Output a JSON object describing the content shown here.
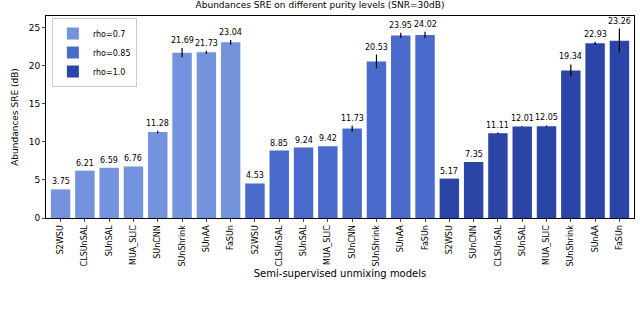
{
  "chart_data": {
    "type": "bar",
    "title": "Abundances SRE on different purity levels (SNR=30dB)",
    "x_label": "Semi-supervised unmixing models",
    "y_label": "Abundances SRE (dB)",
    "categories": [
      "S2WSU",
      "CLSUnSAL",
      "SUnSAL",
      "MUA_SLIC",
      "SUnCNN",
      "SUnShrink",
      "SUnAA",
      "FaSUn",
      "S2WSU",
      "CLSUnSAL",
      "SUnSAL",
      "MUA_SLIC",
      "SUnCNN",
      "SUnShrink",
      "SUnAA",
      "FaSUn",
      "S2WSU",
      "SUnCNN",
      "CLSUnSAL",
      "SUnSAL",
      "MUA_SLIC",
      "SUnShrink",
      "SUnAA",
      "FaSUn"
    ],
    "series": [
      {
        "name": "rho=0.7",
        "color": "#7393dc",
        "values": [
          3.75,
          6.21,
          6.59,
          6.76,
          11.28,
          21.69,
          21.73,
          23.04,
          null,
          null,
          null,
          null,
          null,
          null,
          null,
          null,
          null,
          null,
          null,
          null,
          null,
          null,
          null,
          null
        ],
        "errors": [
          0,
          0,
          0,
          0,
          0.15,
          0.6,
          0.2,
          0.3,
          null,
          null,
          null,
          null,
          null,
          null,
          null,
          null,
          null,
          null,
          null,
          null,
          null,
          null,
          null,
          null
        ]
      },
      {
        "name": "rho=0.85",
        "color": "#4a6bcc",
        "values": [
          null,
          null,
          null,
          null,
          null,
          null,
          null,
          null,
          4.53,
          8.85,
          9.24,
          9.42,
          11.73,
          20.53,
          23.95,
          24.02,
          null,
          null,
          null,
          null,
          null,
          null,
          null,
          null
        ],
        "errors": [
          null,
          null,
          null,
          null,
          null,
          null,
          null,
          null,
          0,
          0,
          0,
          0,
          0.4,
          0.9,
          0.35,
          0.4,
          null,
          null,
          null,
          null,
          null,
          null,
          null,
          null
        ]
      },
      {
        "name": "rho=1.0",
        "color": "#2a45a6",
        "values": [
          null,
          null,
          null,
          null,
          null,
          null,
          null,
          null,
          null,
          null,
          null,
          null,
          null,
          null,
          null,
          null,
          5.17,
          7.35,
          11.11,
          12.01,
          12.05,
          19.34,
          22.93,
          23.26
        ],
        "errors": [
          null,
          null,
          null,
          null,
          null,
          null,
          null,
          null,
          null,
          null,
          null,
          null,
          null,
          null,
          null,
          null,
          0,
          0,
          0.1,
          0.05,
          0.1,
          0.8,
          0.2,
          1.6
        ]
      }
    ],
    "ylim": [
      0,
      26.5
    ],
    "yticks": [
      0,
      5,
      10,
      15,
      20,
      25
    ],
    "legend": "upper left",
    "data_labels": true,
    "grid": false
  }
}
